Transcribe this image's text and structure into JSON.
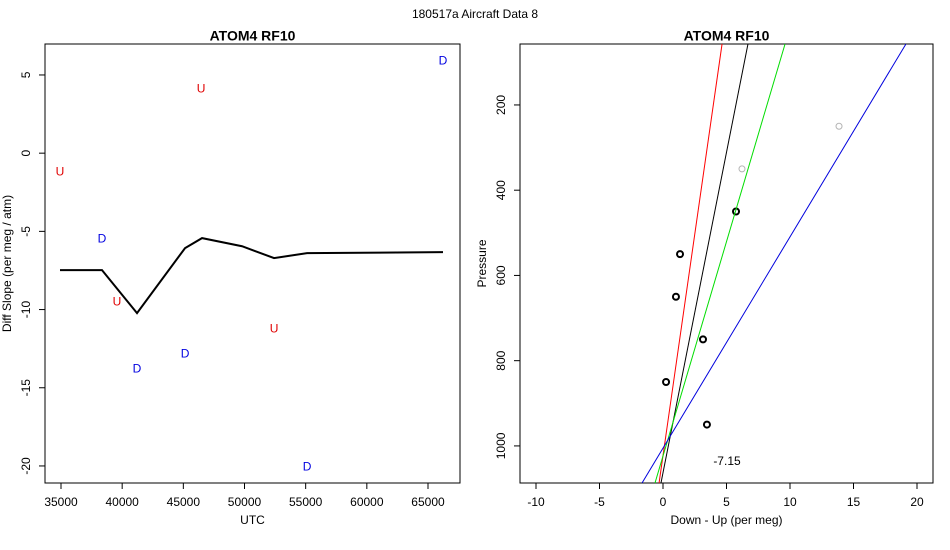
{
  "title": "180517a   Aircraft Data 8",
  "chart_data": [
    {
      "type": "scatter",
      "title": "ATOM4 RF10",
      "x_label": "UTC",
      "y_label": "Diff Slope (per meg / atm)",
      "xlim": [
        33692,
        67616
      ],
      "ylim": [
        -21.09,
        6.98
      ],
      "xticks": [
        35000,
        40000,
        45000,
        50000,
        55000,
        60000,
        65000
      ],
      "yticks": [
        -20,
        -15,
        -10,
        -5,
        0,
        5
      ],
      "series": [
        {
          "name": "U",
          "marker": "letter",
          "color": "#e00000",
          "x": [
            34918,
            46447,
            39579,
            52416
          ],
          "values": [
            -1.21,
            4.09,
            -9.53,
            -11.25
          ]
        },
        {
          "name": "D",
          "marker": "letter",
          "color": "#0000e0",
          "x": [
            66226,
            38352,
            41214,
            45139,
            55114
          ],
          "values": [
            5.88,
            -5.5,
            -13.81,
            -12.85,
            -20.08
          ]
        },
        {
          "marker": "line",
          "color": "#000000",
          "x": [
            34918,
            38352,
            41214,
            45139,
            46529,
            49800,
            52416,
            55114,
            66226
          ],
          "values": [
            -7.48,
            -7.48,
            -10.23,
            -6.07,
            -5.43,
            -5.95,
            -6.71,
            -6.39,
            -6.33
          ]
        }
      ]
    },
    {
      "type": "scatter",
      "title": "ATOM4 RF10",
      "x_label": "Down - Up (per meg)",
      "y_label": "Pressure",
      "xlim": [
        -11.26,
        21.26
      ],
      "ylim": [
        1087,
        57
      ],
      "xticks": [
        -10,
        -5,
        0,
        5,
        10,
        15,
        20
      ],
      "yticks": [
        200,
        400,
        600,
        800,
        1000
      ],
      "annotation": "-7.15",
      "series": [
        {
          "marker": "circle",
          "color": "#000000",
          "x": [
            5.75,
            1.34,
            1.02,
            3.15,
            0.24,
            3.46
          ],
          "values": [
            450,
            550,
            650,
            750,
            850,
            950
          ]
        },
        {
          "marker": "circle",
          "color": "#b4b4b4",
          "x": [
            6.22,
            13.86
          ],
          "values": [
            350,
            250
          ]
        },
        {
          "marker": "line",
          "color": "#ff0000",
          "x": [
            -0.31,
            4.65
          ],
          "values": [
            1087,
            57
          ]
        },
        {
          "marker": "line",
          "color": "#000000",
          "x": [
            -0.16,
            6.69
          ],
          "values": [
            1087,
            57
          ]
        },
        {
          "marker": "line",
          "color": "#00dd00",
          "x": [
            -0.63,
            9.61
          ],
          "values": [
            1087,
            57
          ]
        },
        {
          "marker": "line",
          "color": "#0000dd",
          "x": [
            -1.65,
            19.13
          ],
          "values": [
            1087,
            57
          ]
        }
      ]
    }
  ]
}
